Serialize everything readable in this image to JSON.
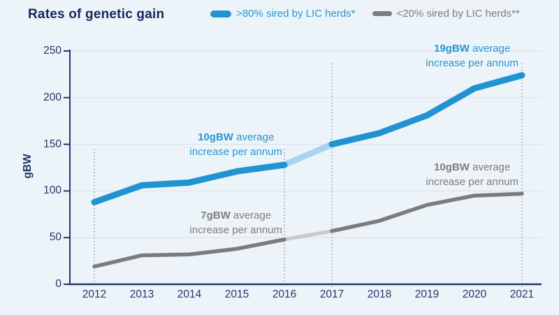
{
  "title": "Rates of genetic gain",
  "legend": [
    {
      "label": ">80% sired by LIC herds*"
    },
    {
      "label": "<20% sired by LIC herds**"
    }
  ],
  "colors": {
    "background": "#edf4f9",
    "navy_axis": "#22356b",
    "blue_line": "#2293d2",
    "blue_line_highlight": "#a7d5ef",
    "gray_line": "#7c7c7c",
    "gray_line_highlight": "#c9cbcd",
    "gridline": "#d7e0e9",
    "dotted_guide": "#8c9bb5"
  },
  "chart_data": {
    "type": "line",
    "title": "Rates of genetic gain",
    "xlabel": "",
    "ylabel": "gBW",
    "ylim": [
      0,
      250
    ],
    "yticks": [
      0,
      50,
      100,
      150,
      200,
      250
    ],
    "x": [
      2012,
      2013,
      2014,
      2015,
      2016,
      2017,
      2018,
      2019,
      2020,
      2021
    ],
    "grid": "horizontal-only",
    "legend_position": "top",
    "series": [
      {
        "name": ">80% sired by LIC herds*",
        "color": "#2293d2",
        "highlight_color": "#a7d5ef",
        "values": [
          88,
          106,
          109,
          121,
          128,
          150,
          162,
          181,
          210,
          224
        ]
      },
      {
        "name": "<20% sired by LIC herds**",
        "color": "#7c7c7c",
        "highlight_color": "#c9cbcd",
        "values": [
          19,
          31,
          32,
          38,
          48,
          57,
          68,
          85,
          95,
          97
        ]
      }
    ],
    "highlight_span": [
      2016,
      2017
    ],
    "dotted_guides": [
      {
        "x": 2012,
        "top": 145
      },
      {
        "x": 2016,
        "top": 145
      },
      {
        "x": 2017,
        "top": 237
      },
      {
        "x": 2021,
        "top": 237
      }
    ],
    "annotations": [
      {
        "target_series": 0,
        "bold": "10gBW",
        "line1_rest": " average",
        "line2": "increase per annum"
      },
      {
        "target_series": 0,
        "bold": "19gBW",
        "line1_rest": " average",
        "line2": "increase per annum"
      },
      {
        "target_series": 1,
        "bold": "7gBW",
        "line1_rest": " average",
        "line2": "increase per annum"
      },
      {
        "target_series": 1,
        "bold": "10gBW",
        "line1_rest": " average",
        "line2": "increase per annum"
      }
    ]
  }
}
